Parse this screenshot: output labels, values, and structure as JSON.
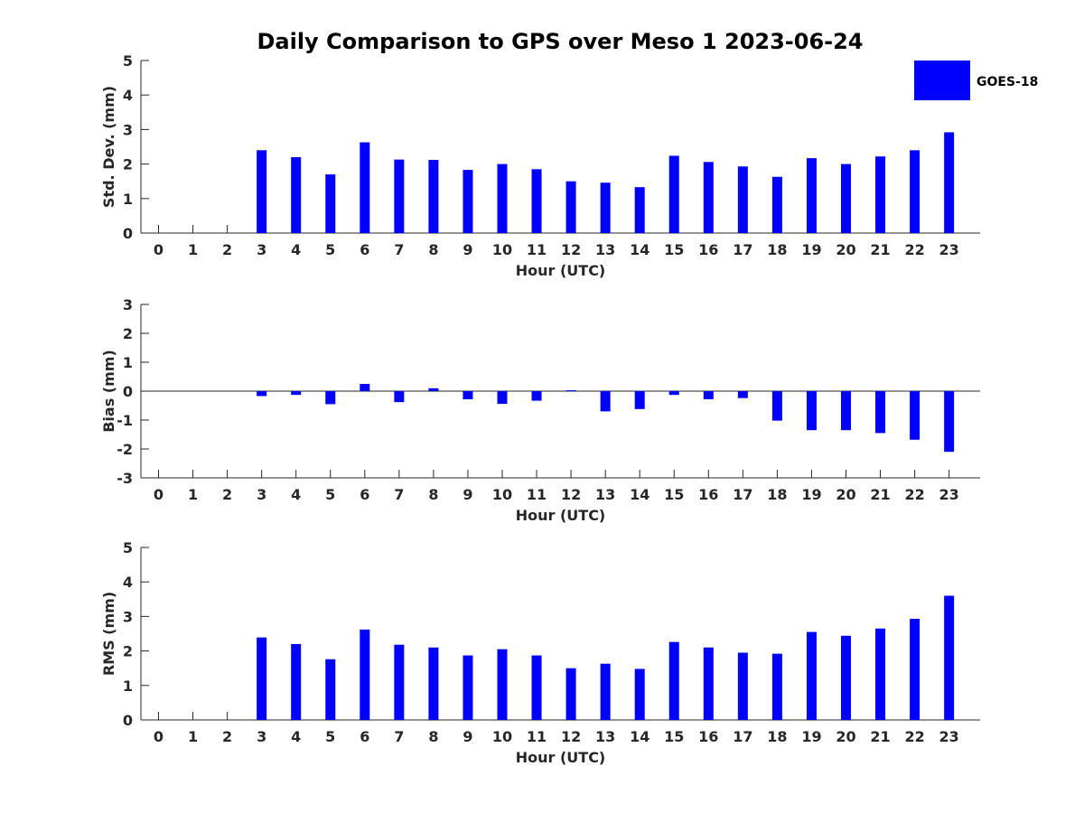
{
  "title": "Daily Comparison to GPS over Meso 1 2023-06-24",
  "legend": {
    "label": "GOES-18",
    "color": "#0000ff"
  },
  "chart_data": [
    {
      "type": "bar",
      "xlabel": "Hour (UTC)",
      "ylabel": "Std. Dev. (mm)",
      "ylim": [
        0,
        5
      ],
      "yticks": [
        0,
        1,
        2,
        3,
        4,
        5
      ],
      "categories": [
        "0",
        "1",
        "2",
        "3",
        "4",
        "5",
        "6",
        "7",
        "8",
        "9",
        "10",
        "11",
        "12",
        "13",
        "14",
        "15",
        "16",
        "17",
        "18",
        "19",
        "20",
        "21",
        "22",
        "23"
      ],
      "series": [
        {
          "name": "GOES-18",
          "values": [
            null,
            null,
            null,
            2.4,
            2.2,
            1.7,
            2.63,
            2.13,
            2.12,
            1.83,
            2.0,
            1.85,
            1.5,
            1.46,
            1.33,
            2.24,
            2.06,
            1.93,
            1.63,
            2.17,
            2.0,
            2.22,
            2.4,
            2.92
          ]
        }
      ],
      "grid": false,
      "legend_position": "top-right"
    },
    {
      "type": "bar",
      "xlabel": "Hour (UTC)",
      "ylabel": "Bias (mm)",
      "ylim": [
        -3,
        3
      ],
      "yticks": [
        -3,
        -2,
        -1,
        0,
        1,
        2,
        3
      ],
      "categories": [
        "0",
        "1",
        "2",
        "3",
        "4",
        "5",
        "6",
        "7",
        "8",
        "9",
        "10",
        "11",
        "12",
        "13",
        "14",
        "15",
        "16",
        "17",
        "18",
        "19",
        "20",
        "21",
        "22",
        "23"
      ],
      "series": [
        {
          "name": "GOES-18",
          "values": [
            null,
            null,
            null,
            -0.17,
            -0.13,
            -0.45,
            0.25,
            -0.38,
            0.1,
            -0.28,
            -0.44,
            -0.33,
            0.03,
            -0.7,
            -0.62,
            -0.13,
            -0.28,
            -0.24,
            -1.02,
            -1.35,
            -1.35,
            -1.45,
            -1.68,
            -2.1
          ]
        }
      ],
      "grid": false
    },
    {
      "type": "bar",
      "xlabel": "Hour (UTC)",
      "ylabel": "RMS (mm)",
      "ylim": [
        0,
        5
      ],
      "yticks": [
        0,
        1,
        2,
        3,
        4,
        5
      ],
      "categories": [
        "0",
        "1",
        "2",
        "3",
        "4",
        "5",
        "6",
        "7",
        "8",
        "9",
        "10",
        "11",
        "12",
        "13",
        "14",
        "15",
        "16",
        "17",
        "18",
        "19",
        "20",
        "21",
        "22",
        "23"
      ],
      "series": [
        {
          "name": "GOES-18",
          "values": [
            null,
            null,
            null,
            2.39,
            2.2,
            1.76,
            2.62,
            2.18,
            2.1,
            1.87,
            2.05,
            1.87,
            1.5,
            1.63,
            1.48,
            2.26,
            2.1,
            1.95,
            1.92,
            2.55,
            2.44,
            2.65,
            2.93,
            3.6
          ]
        }
      ],
      "grid": false
    }
  ]
}
